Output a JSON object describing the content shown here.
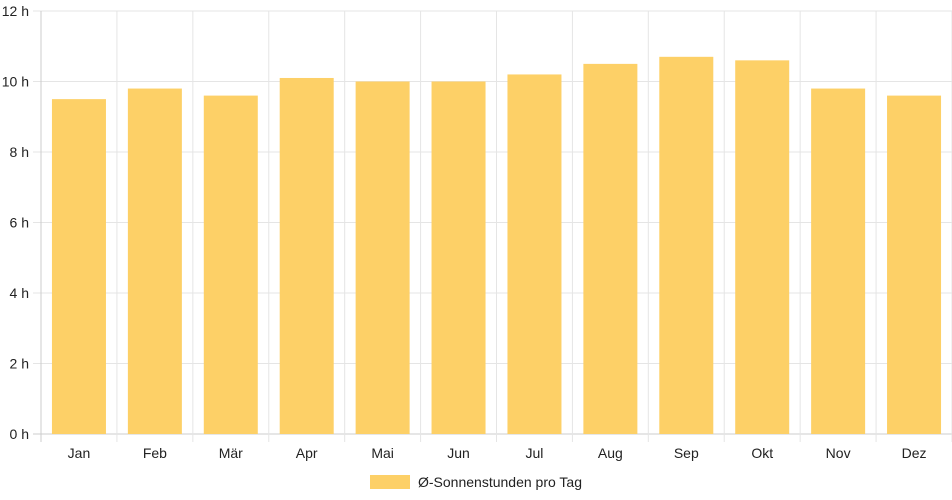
{
  "chart_data": {
    "type": "bar",
    "categories": [
      "Jan",
      "Feb",
      "Mär",
      "Apr",
      "Mai",
      "Jun",
      "Jul",
      "Aug",
      "Sep",
      "Okt",
      "Nov",
      "Dez"
    ],
    "series": [
      {
        "name": "Ø-Sonnenstunden pro Tag",
        "values": [
          9.5,
          9.8,
          9.6,
          10.1,
          10.0,
          10.0,
          10.2,
          10.5,
          10.7,
          10.6,
          9.8,
          9.6
        ],
        "color": "#fdd067"
      }
    ],
    "y_ticks": [
      "0 h",
      "2 h",
      "4 h",
      "6 h",
      "8 h",
      "10 h",
      "12 h"
    ],
    "ylim": [
      0,
      12
    ],
    "grid": true,
    "legend_position": "bottom"
  },
  "legend": {
    "label": "Ø-Sonnenstunden pro Tag"
  },
  "colors": {
    "bar": "#fdd067",
    "grid": "#e5e5e5",
    "axis": "#cccccc"
  }
}
